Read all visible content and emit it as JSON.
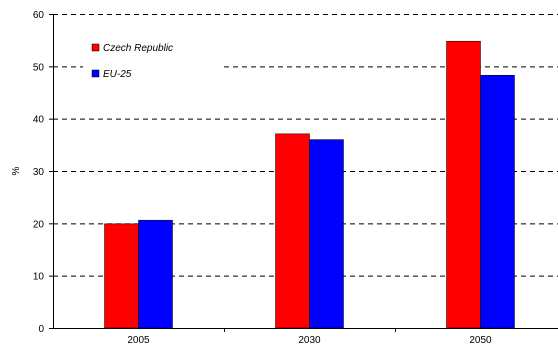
{
  "chart_data": {
    "type": "bar",
    "categories": [
      "2005",
      "2030",
      "2050"
    ],
    "series": [
      {
        "name": "Czech Republic",
        "color": "#ff0000",
        "values": [
          19.9,
          37.1,
          54.8
        ]
      },
      {
        "name": "EU-25",
        "color": "#0000ff",
        "values": [
          20.6,
          36.0,
          48.3
        ]
      }
    ],
    "title": "",
    "xlabel": "",
    "ylabel": "%",
    "ylim": [
      0,
      60
    ],
    "yticks": [
      0,
      10,
      20,
      30,
      40,
      50,
      60
    ],
    "grid": "horizontal dashed",
    "legend_position": "top-left"
  }
}
